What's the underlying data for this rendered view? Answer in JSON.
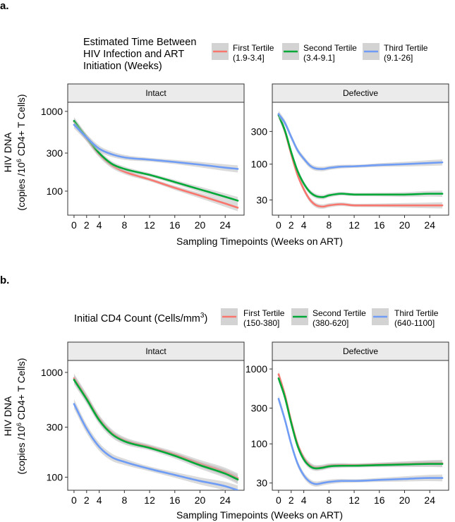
{
  "panel_labels": {
    "a": "a.",
    "b": "b."
  },
  "shared": {
    "ylabel_line1": "HIV DNA",
    "ylabel_line2_pre": "(copies /10",
    "ylabel_sup": "6",
    "ylabel_line2_post": " CD4+ T Cells)",
    "xlabel": "Sampling Timepoints (Weeks on ART)",
    "x_ticks": [
      "0",
      "2",
      "4",
      "8",
      "12",
      "16",
      "20",
      "24"
    ],
    "facets": [
      "Intact",
      "Defective"
    ]
  },
  "colors": {
    "red": "#F8766D",
    "green": "#00A838",
    "blue": "#6F9CF4",
    "band": "#BEBEBE",
    "strip": "#EBEBEB"
  },
  "legend_a": {
    "title_lines": [
      "Estimated Time Between",
      "HIV Infection and ART",
      "Initiation (Weeks)"
    ],
    "entries": [
      {
        "name": "First Tertile",
        "range": "(1.9-3.4]"
      },
      {
        "name": "Second Tertile",
        "range": "(3.4-9.1]"
      },
      {
        "name": "Third Tertile",
        "range": "(9.1-26]"
      }
    ]
  },
  "legend_b": {
    "title_pre": "Initial CD4 Count (Cells/mm",
    "title_sup": "3",
    "title_post": ")",
    "entries": [
      {
        "name": "First Tertile",
        "range": "(150-380]"
      },
      {
        "name": "Second Tertile",
        "range": "(380-620]"
      },
      {
        "name": "Third Tertile",
        "range": "(640-1100]"
      }
    ]
  },
  "chart_data": [
    {
      "panel": "a",
      "facet": "Intact",
      "type": "line",
      "yscale": "log10",
      "xlim": [
        -1,
        27
      ],
      "ylim": [
        50,
        1300
      ],
      "y_ticks": [
        100,
        300,
        1000
      ],
      "y_tick_labels": [
        "100",
        "300",
        "1000"
      ],
      "x": [
        0,
        2,
        4,
        6,
        8,
        12,
        16,
        20,
        24,
        26
      ],
      "series": [
        {
          "name": "First Tertile (1.9-3.4]",
          "color": "red",
          "values": [
            750,
            460,
            290,
            210,
            175,
            140,
            110,
            88,
            70,
            62
          ]
        },
        {
          "name": "Second Tertile (3.4-9.1]",
          "color": "green",
          "values": [
            760,
            470,
            300,
            220,
            190,
            160,
            130,
            105,
            85,
            76
          ]
        },
        {
          "name": "Third Tertile (9.1-26]",
          "color": "blue",
          "values": [
            680,
            470,
            340,
            290,
            265,
            248,
            232,
            215,
            197,
            190
          ]
        }
      ]
    },
    {
      "panel": "a",
      "facet": "Defective",
      "type": "line",
      "yscale": "log10",
      "xlim": [
        -1,
        27
      ],
      "ylim": [
        18,
        800
      ],
      "y_ticks": [
        30,
        100,
        300
      ],
      "y_tick_labels": [
        "30",
        "100",
        "300"
      ],
      "x": [
        0,
        1,
        2,
        3,
        4,
        5,
        6,
        7,
        8,
        10,
        12,
        16,
        20,
        24,
        26
      ],
      "series": [
        {
          "name": "First Tertile (1.9-3.4]",
          "color": "red",
          "values": [
            520,
            300,
            140,
            70,
            43,
            30,
            25,
            24,
            25,
            26,
            25,
            25,
            25,
            25,
            25
          ]
        },
        {
          "name": "Second Tertile (3.4-9.1]",
          "color": "green",
          "values": [
            520,
            310,
            150,
            80,
            52,
            39,
            34,
            33,
            35,
            37,
            36,
            36,
            36,
            37,
            37
          ]
        },
        {
          "name": "Third Tertile (9.1-26]",
          "color": "blue",
          "values": [
            540,
            400,
            250,
            160,
            120,
            95,
            86,
            85,
            88,
            92,
            93,
            97,
            100,
            104,
            106
          ]
        }
      ]
    },
    {
      "panel": "b",
      "facet": "Intact",
      "type": "line",
      "yscale": "log10",
      "xlim": [
        -1,
        27
      ],
      "ylim": [
        75,
        1300
      ],
      "y_ticks": [
        100,
        300,
        1000
      ],
      "y_tick_labels": [
        "100",
        "300",
        "1000"
      ],
      "x": [
        0,
        2,
        4,
        6,
        8,
        12,
        16,
        20,
        24,
        26
      ],
      "series": [
        {
          "name": "First Tertile (150-380]",
          "color": "red",
          "values": [
            880,
            570,
            360,
            265,
            225,
            195,
            165,
            135,
            112,
            98
          ]
        },
        {
          "name": "Second Tertile (380-620]",
          "color": "green",
          "values": [
            850,
            555,
            350,
            258,
            220,
            190,
            160,
            130,
            108,
            95
          ]
        },
        {
          "name": "Third Tertile (640-1100]",
          "color": "blue",
          "values": [
            500,
            290,
            195,
            155,
            140,
            120,
            105,
            92,
            82,
            75
          ]
        }
      ]
    },
    {
      "panel": "b",
      "facet": "Defective",
      "type": "line",
      "yscale": "log10",
      "xlim": [
        -1,
        27
      ],
      "ylim": [
        24,
        1300
      ],
      "y_ticks": [
        30,
        100,
        300,
        1000
      ],
      "y_tick_labels": [
        "30",
        "100",
        "300",
        "1000"
      ],
      "x": [
        0,
        1,
        2,
        3,
        4,
        5,
        6,
        7,
        8,
        10,
        12,
        16,
        20,
        24,
        26
      ],
      "series": [
        {
          "name": "First Tertile (150-380]",
          "color": "red",
          "values": [
            850,
            450,
            200,
            100,
            65,
            52,
            48,
            49,
            51,
            52,
            52,
            53,
            54,
            55,
            55
          ]
        },
        {
          "name": "Second Tertile (380-620]",
          "color": "green",
          "values": [
            750,
            420,
            190,
            95,
            62,
            50,
            47,
            48,
            50,
            51,
            51,
            52,
            53,
            54,
            54
          ]
        },
        {
          "name": "Third Tertile (640-1100]",
          "color": "blue",
          "values": [
            400,
            210,
            100,
            55,
            38,
            31,
            29,
            30,
            31,
            32,
            32,
            33,
            34,
            35,
            35
          ]
        }
      ]
    }
  ]
}
